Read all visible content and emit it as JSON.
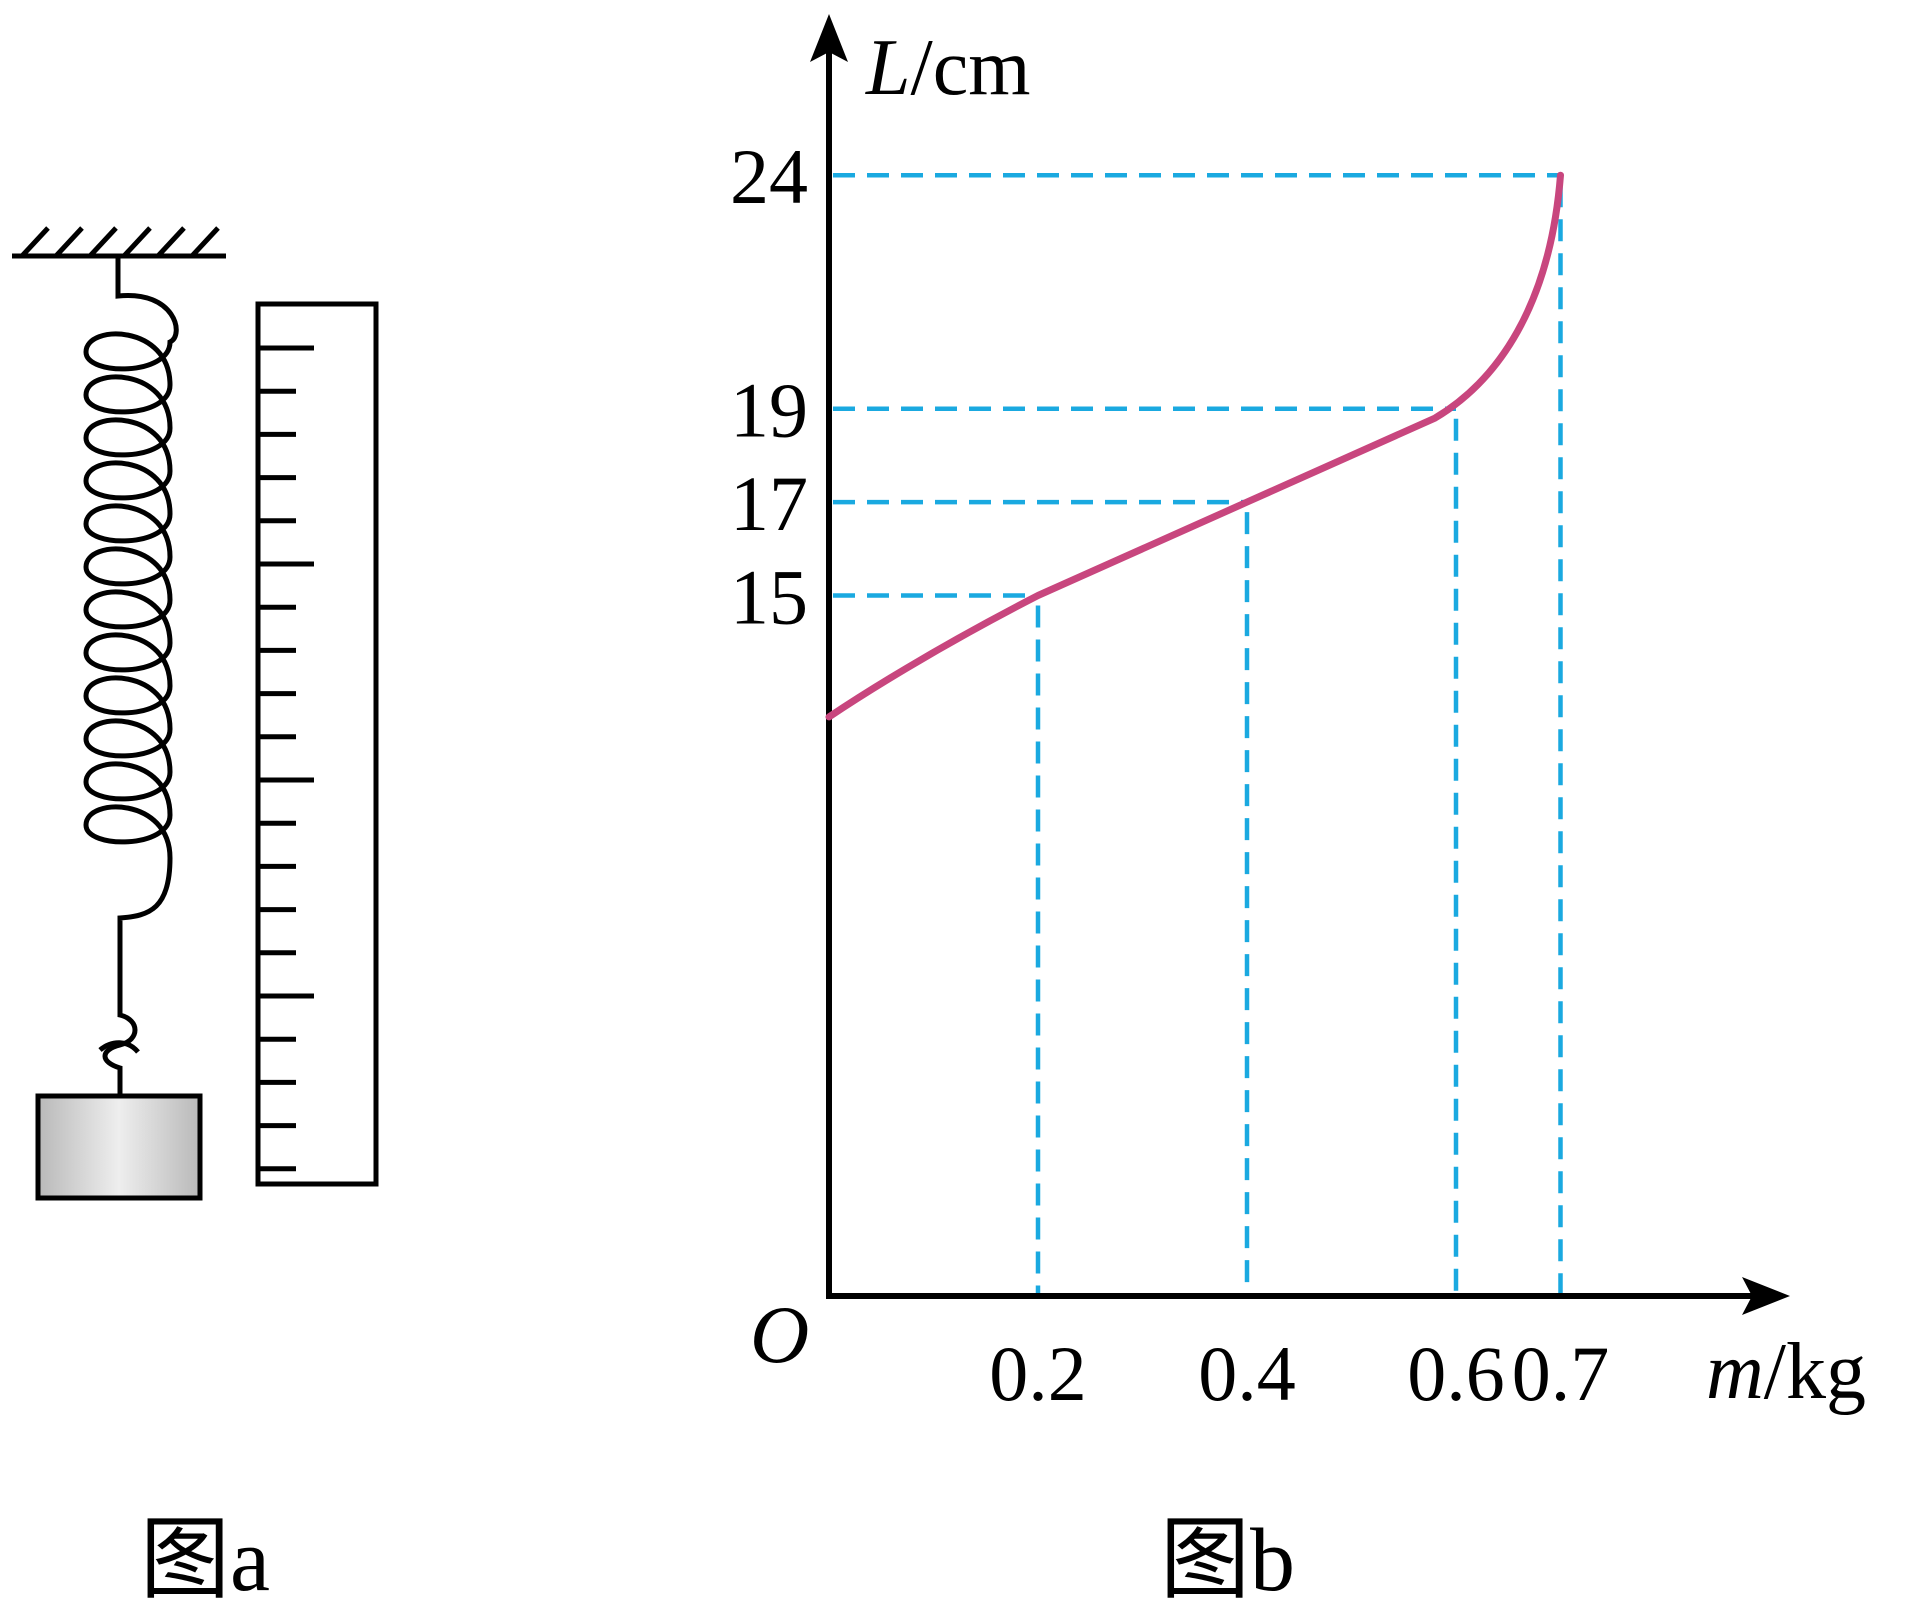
{
  "figure_a": {
    "caption": "图a",
    "ruler_tick_count": 20
  },
  "figure_b": {
    "caption": "图b",
    "origin_label": "O",
    "y_axis": {
      "var": "L",
      "unit": "/cm"
    },
    "x_axis": {
      "var": "m",
      "unit": "/kg"
    },
    "y_ticks": [
      "24",
      "19",
      "17",
      "15"
    ],
    "x_ticks": [
      "0.2",
      "0.4",
      "0.6",
      "0.7"
    ],
    "colors": {
      "curve": "#c8467e",
      "guides": "#1aa9e0"
    }
  },
  "chart_data": {
    "type": "line",
    "x": [
      0,
      0.2,
      0.4,
      0.6,
      0.7
    ],
    "y": [
      12.4,
      15,
      17,
      19,
      24
    ],
    "xlim": [
      0,
      0.92
    ],
    "ylim": [
      0,
      28
    ],
    "guides": [
      [
        0.2,
        15
      ],
      [
        0.4,
        17
      ],
      [
        0.6,
        19
      ],
      [
        0.7,
        24
      ]
    ]
  }
}
